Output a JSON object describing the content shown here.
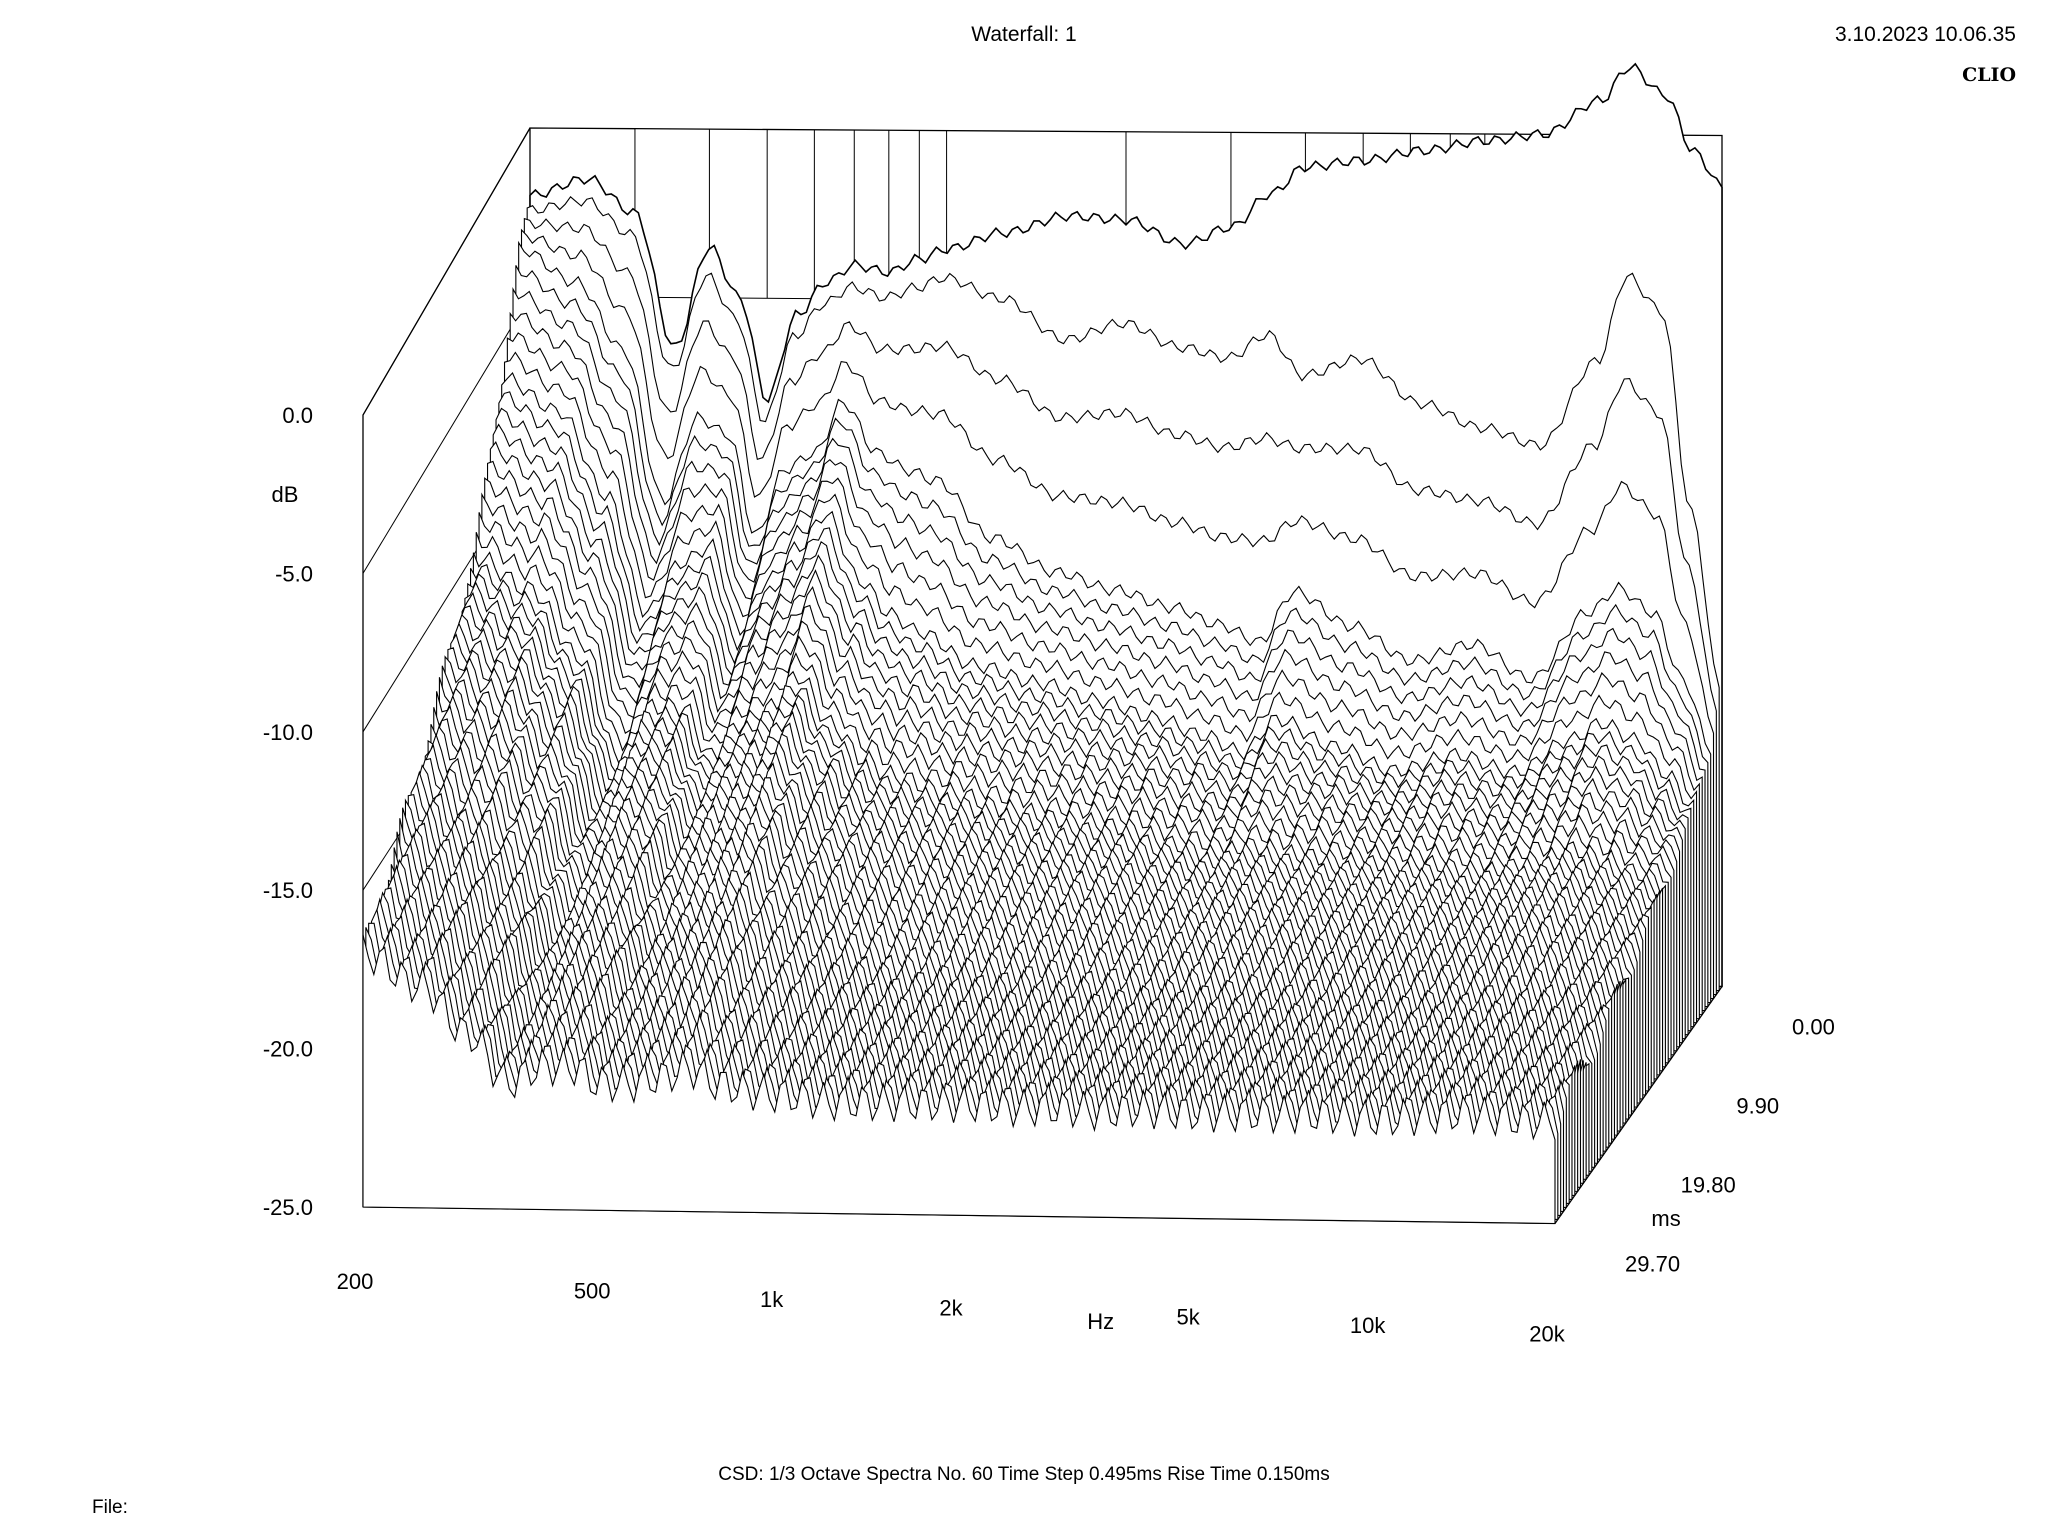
{
  "header": {
    "title": "Waterfall: 1",
    "datetime": "3.10.2023 10.06.35",
    "brand": "CLIO"
  },
  "footer": {
    "settings": "CSD:   1/3 Octave   Spectra No. 60   Time Step 0.495ms   Rise Time 0.150ms",
    "file_label": "File:"
  },
  "chart_data": {
    "type": "waterfall",
    "title": "Waterfall: 1",
    "ylabel": "dB",
    "xlabel": "Hz",
    "zlabel": "ms",
    "ylim": [
      -25,
      0
    ],
    "y_ticks": [
      "0.0",
      "-5.0",
      "-10.0",
      "-15.0",
      "-20.0",
      "-25.0"
    ],
    "x_ticks": [
      "200",
      "500",
      "1k",
      "2k",
      "5k",
      "10k",
      "20k"
    ],
    "z_ticks": [
      "0.00",
      "9.90",
      "19.80",
      "29.70"
    ],
    "x_scale": "log",
    "xlim": [
      200,
      20000
    ],
    "zlim": [
      0,
      29.7
    ],
    "spectra_count": 60,
    "time_step_ms": 0.495,
    "rise_time_ms": 0.15,
    "smoothing": "1/3 Octave",
    "slices": [
      {
        "time_ms": 0.0,
        "points": [
          [
            200,
            -2.0
          ],
          [
            250,
            -1.5
          ],
          [
            300,
            -2.5
          ],
          [
            350,
            -6.5
          ],
          [
            400,
            -3.5
          ],
          [
            450,
            -5.0
          ],
          [
            500,
            -8.0
          ],
          [
            560,
            -5.5
          ],
          [
            630,
            -4.5
          ],
          [
            700,
            -4.0
          ],
          [
            800,
            -4.2
          ],
          [
            900,
            -3.8
          ],
          [
            1000,
            -3.5
          ],
          [
            1250,
            -3.0
          ],
          [
            1600,
            -2.5
          ],
          [
            2000,
            -2.6
          ],
          [
            2500,
            -3.3
          ],
          [
            3000,
            -2.8
          ],
          [
            3500,
            -1.8
          ],
          [
            4000,
            -1.0
          ],
          [
            5000,
            -0.8
          ],
          [
            6300,
            -0.5
          ],
          [
            8000,
            -0.2
          ],
          [
            10000,
            0.0
          ],
          [
            12500,
            1.0
          ],
          [
            14000,
            2.0
          ],
          [
            16000,
            1.2
          ],
          [
            18000,
            -0.5
          ],
          [
            20000,
            -1.5
          ]
        ]
      },
      {
        "time_ms": 0.5,
        "points": [
          [
            200,
            -2.3
          ],
          [
            250,
            -2.0
          ],
          [
            300,
            -3.0
          ],
          [
            350,
            -7.0
          ],
          [
            400,
            -4.2
          ],
          [
            450,
            -5.5
          ],
          [
            500,
            -8.5
          ],
          [
            560,
            -6.0
          ],
          [
            630,
            -5.0
          ],
          [
            700,
            -4.5
          ],
          [
            800,
            -4.8
          ],
          [
            900,
            -4.5
          ],
          [
            1000,
            -4.2
          ],
          [
            1250,
            -4.8
          ],
          [
            1600,
            -6.0
          ],
          [
            2000,
            -5.5
          ],
          [
            2500,
            -6.2
          ],
          [
            3000,
            -6.5
          ],
          [
            3500,
            -5.8
          ],
          [
            4000,
            -7.0
          ],
          [
            5000,
            -6.5
          ],
          [
            6300,
            -7.8
          ],
          [
            8000,
            -8.5
          ],
          [
            10000,
            -9.0
          ],
          [
            12500,
            -6.5
          ],
          [
            14000,
            -4.0
          ],
          [
            16000,
            -5.0
          ],
          [
            18000,
            -11.0
          ],
          [
            20000,
            -16.0
          ]
        ]
      },
      {
        "time_ms": 2.0,
        "points": [
          [
            200,
            -3.0
          ],
          [
            250,
            -4.0
          ],
          [
            300,
            -6.0
          ],
          [
            350,
            -10.5
          ],
          [
            400,
            -8.0
          ],
          [
            450,
            -8.5
          ],
          [
            500,
            -11.5
          ],
          [
            560,
            -9.5
          ],
          [
            630,
            -9.0
          ],
          [
            700,
            -7.5
          ],
          [
            800,
            -9.0
          ],
          [
            900,
            -9.5
          ],
          [
            1000,
            -9.8
          ],
          [
            1250,
            -11.5
          ],
          [
            1600,
            -12.5
          ],
          [
            2000,
            -13.0
          ],
          [
            2500,
            -13.5
          ],
          [
            3000,
            -14.0
          ],
          [
            3500,
            -14.5
          ],
          [
            4000,
            -13.0
          ],
          [
            5000,
            -14.0
          ],
          [
            6300,
            -15.0
          ],
          [
            8000,
            -14.5
          ],
          [
            10000,
            -15.5
          ],
          [
            12500,
            -13.5
          ],
          [
            14000,
            -12.8
          ],
          [
            16000,
            -13.5
          ],
          [
            18000,
            -15.5
          ],
          [
            20000,
            -17.5
          ]
        ]
      },
      {
        "time_ms": 5.0,
        "points": [
          [
            200,
            -6.0
          ],
          [
            250,
            -7.0
          ],
          [
            300,
            -9.5
          ],
          [
            350,
            -13.0
          ],
          [
            400,
            -11.5
          ],
          [
            450,
            -11.0
          ],
          [
            500,
            -13.5
          ],
          [
            560,
            -12.0
          ],
          [
            630,
            -11.0
          ],
          [
            700,
            -10.0
          ],
          [
            800,
            -12.0
          ],
          [
            900,
            -13.0
          ],
          [
            1000,
            -13.5
          ],
          [
            1250,
            -14.5
          ],
          [
            1600,
            -15.0
          ],
          [
            2000,
            -15.5
          ],
          [
            2500,
            -16.0
          ],
          [
            3000,
            -16.5
          ],
          [
            3500,
            -17.0
          ],
          [
            4000,
            -16.0
          ],
          [
            5000,
            -16.8
          ],
          [
            6300,
            -17.5
          ],
          [
            8000,
            -17.0
          ],
          [
            10000,
            -17.5
          ],
          [
            12500,
            -16.5
          ],
          [
            14000,
            -16.0
          ],
          [
            16000,
            -16.5
          ],
          [
            18000,
            -17.5
          ],
          [
            20000,
            -18.5
          ]
        ]
      },
      {
        "time_ms": 10.0,
        "points": [
          [
            200,
            -10.0
          ],
          [
            250,
            -11.0
          ],
          [
            300,
            -13.0
          ],
          [
            350,
            -16.0
          ],
          [
            400,
            -14.5
          ],
          [
            450,
            -14.5
          ],
          [
            500,
            -16.0
          ],
          [
            560,
            -15.0
          ],
          [
            630,
            -14.5
          ],
          [
            700,
            -13.5
          ],
          [
            800,
            -15.0
          ],
          [
            900,
            -16.0
          ],
          [
            1000,
            -16.5
          ],
          [
            1250,
            -17.0
          ],
          [
            1600,
            -17.5
          ],
          [
            2000,
            -17.8
          ],
          [
            2500,
            -18.0
          ],
          [
            3000,
            -18.5
          ],
          [
            3500,
            -18.8
          ],
          [
            4000,
            -18.5
          ],
          [
            5000,
            -18.8
          ],
          [
            6300,
            -19.0
          ],
          [
            8000,
            -19.0
          ],
          [
            10000,
            -19.2
          ],
          [
            12500,
            -18.8
          ],
          [
            14000,
            -18.5
          ],
          [
            16000,
            -18.8
          ],
          [
            18000,
            -19.2
          ],
          [
            20000,
            -19.5
          ]
        ]
      },
      {
        "time_ms": 20.0,
        "points": [
          [
            200,
            -14.0
          ],
          [
            250,
            -15.5
          ],
          [
            300,
            -17.0
          ],
          [
            350,
            -19.0
          ],
          [
            400,
            -18.0
          ],
          [
            450,
            -18.0
          ],
          [
            500,
            -19.0
          ],
          [
            560,
            -18.5
          ],
          [
            630,
            -18.0
          ],
          [
            700,
            -17.5
          ],
          [
            800,
            -18.5
          ],
          [
            900,
            -19.0
          ],
          [
            1000,
            -19.5
          ],
          [
            1250,
            -20.0
          ],
          [
            1600,
            -20.0
          ],
          [
            2000,
            -20.2
          ],
          [
            2500,
            -20.3
          ],
          [
            3000,
            -20.5
          ],
          [
            3500,
            -20.6
          ],
          [
            4000,
            -20.5
          ],
          [
            5000,
            -20.6
          ],
          [
            6300,
            -20.7
          ],
          [
            8000,
            -20.7
          ],
          [
            10000,
            -20.8
          ],
          [
            12500,
            -20.6
          ],
          [
            14000,
            -20.5
          ],
          [
            16000,
            -20.6
          ],
          [
            18000,
            -20.8
          ],
          [
            20000,
            -21.0
          ]
        ]
      },
      {
        "time_ms": 29.7,
        "points": [
          [
            200,
            -17.0
          ],
          [
            250,
            -18.0
          ],
          [
            300,
            -19.5
          ],
          [
            350,
            -21.0
          ],
          [
            400,
            -20.5
          ],
          [
            450,
            -20.5
          ],
          [
            500,
            -21.0
          ],
          [
            560,
            -21.0
          ],
          [
            630,
            -20.8
          ],
          [
            700,
            -20.5
          ],
          [
            800,
            -21.0
          ],
          [
            900,
            -21.2
          ],
          [
            1000,
            -21.3
          ],
          [
            1250,
            -21.5
          ],
          [
            1600,
            -21.5
          ],
          [
            2000,
            -21.5
          ],
          [
            2500,
            -21.6
          ],
          [
            3000,
            -21.6
          ],
          [
            3500,
            -21.7
          ],
          [
            4000,
            -21.6
          ],
          [
            5000,
            -21.7
          ],
          [
            6300,
            -21.7
          ],
          [
            8000,
            -21.7
          ],
          [
            10000,
            -21.8
          ],
          [
            12500,
            -21.7
          ],
          [
            14000,
            -21.6
          ],
          [
            16000,
            -21.7
          ],
          [
            18000,
            -21.8
          ],
          [
            20000,
            -21.8
          ]
        ]
      }
    ]
  }
}
